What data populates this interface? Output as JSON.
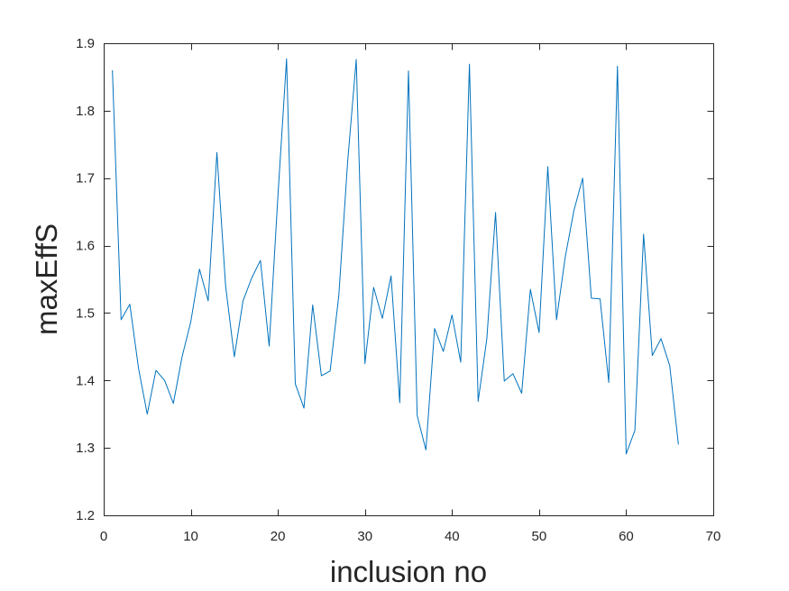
{
  "chart_data": {
    "type": "line",
    "title": "",
    "xlabel": "inclusion no",
    "ylabel": "maxEffS",
    "xlim": [
      0,
      70
    ],
    "ylim": [
      1.2,
      1.9
    ],
    "xticks": [
      0,
      10,
      20,
      30,
      40,
      50,
      60,
      70
    ],
    "xtick_labels": [
      "0",
      "10",
      "20",
      "30",
      "40",
      "50",
      "60",
      "70"
    ],
    "yticks": [
      1.2,
      1.3,
      1.4,
      1.5,
      1.6,
      1.7,
      1.8,
      1.9
    ],
    "ytick_labels": [
      "1.2",
      "1.3",
      "1.4",
      "1.5",
      "1.6",
      "1.7",
      "1.8",
      "1.9"
    ],
    "grid": false,
    "legend": "none",
    "series": [
      {
        "color": "#0072bd",
        "x": [
          1,
          2,
          3,
          4,
          5,
          6,
          7,
          8,
          9,
          10,
          11,
          12,
          13,
          14,
          15,
          16,
          17,
          18,
          19,
          20,
          21,
          22,
          23,
          24,
          25,
          26,
          27,
          28,
          29,
          30,
          31,
          32,
          33,
          34,
          35,
          36,
          37,
          38,
          39,
          40,
          41,
          42,
          43,
          44,
          45,
          46,
          47,
          48,
          49,
          50,
          51,
          52,
          53,
          54,
          55,
          56,
          57,
          58,
          59,
          60,
          61,
          62,
          63,
          64,
          65,
          66
        ],
        "y": [
          1.86,
          1.49,
          1.513,
          1.418,
          1.35,
          1.415,
          1.4,
          1.366,
          1.435,
          1.487,
          1.565,
          1.518,
          1.738,
          1.54,
          1.435,
          1.518,
          1.552,
          1.578,
          1.451,
          1.672,
          1.877,
          1.395,
          1.359,
          1.512,
          1.407,
          1.414,
          1.526,
          1.722,
          1.876,
          1.425,
          1.538,
          1.492,
          1.555,
          1.367,
          1.859,
          1.348,
          1.297,
          1.477,
          1.443,
          1.497,
          1.427,
          1.869,
          1.369,
          1.462,
          1.649,
          1.399,
          1.41,
          1.381,
          1.535,
          1.471,
          1.717,
          1.49,
          1.583,
          1.652,
          1.7,
          1.522,
          1.521,
          1.397,
          1.866,
          1.291,
          1.326,
          1.617,
          1.437,
          1.462,
          1.422,
          1.305
        ]
      }
    ]
  }
}
